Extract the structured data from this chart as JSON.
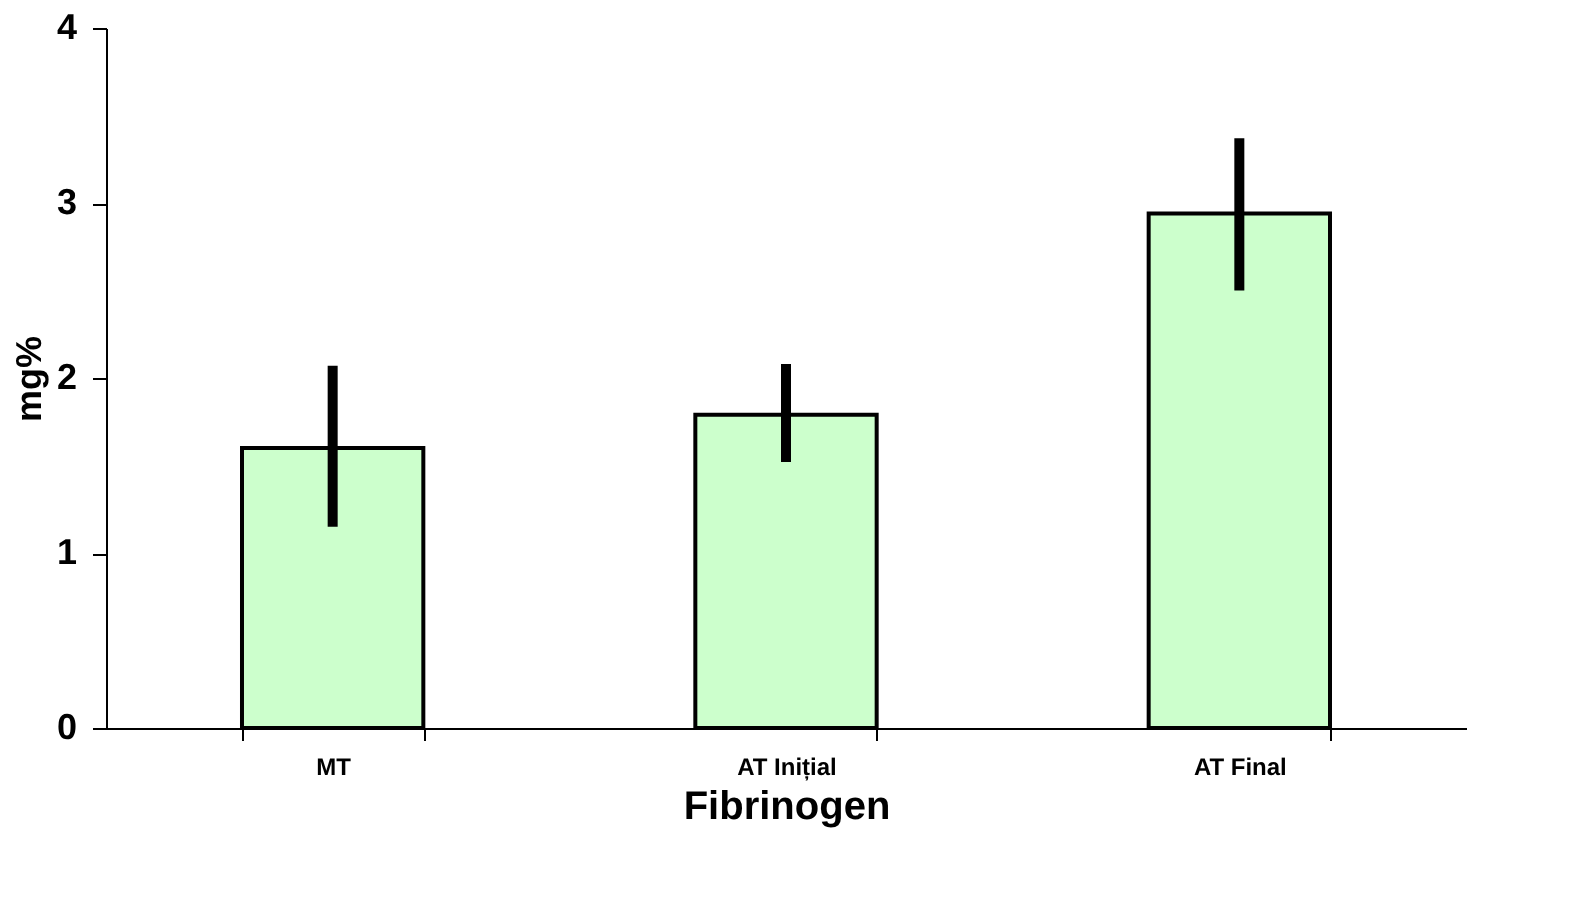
{
  "chart_data": {
    "type": "bar",
    "xlabel": "Fibrinogen",
    "ylabel": "mg%",
    "categories": [
      "MT",
      "AT Inițial",
      "AT Final"
    ],
    "values": [
      1.6,
      1.79,
      2.94
    ],
    "errors": [
      [
        1.15,
        2.07
      ],
      [
        1.52,
        2.08
      ],
      [
        2.5,
        3.37
      ]
    ],
    "color": "#ccffcc",
    "ylim": [
      0,
      4
    ],
    "yticks": [
      0,
      1,
      2,
      3,
      4
    ],
    "grid": false
  }
}
